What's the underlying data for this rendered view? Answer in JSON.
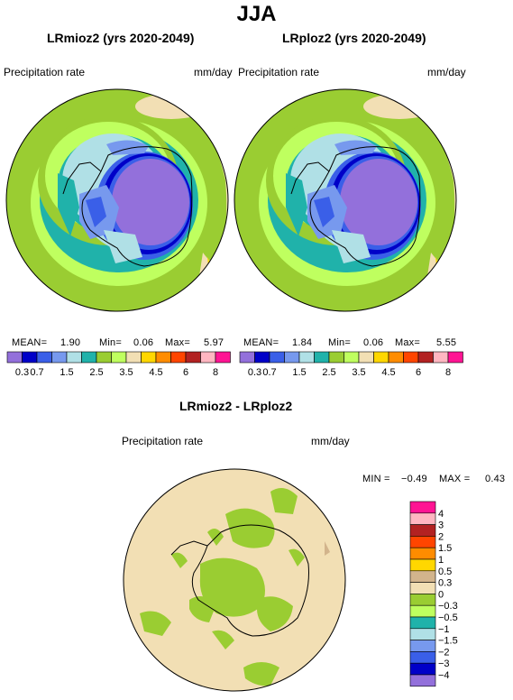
{
  "figure": {
    "title": "JJA"
  },
  "colors": {
    "scale_abs": [
      "#9370db",
      "#0000c8",
      "#3a5fe8",
      "#7799ee",
      "#b0e0e6",
      "#20b2aa",
      "#9acd32",
      "#bfff5f",
      "#f2dfb4",
      "#ffd700",
      "#ff8c00",
      "#ff4500",
      "#b22222",
      "#ffb6c1",
      "#ff1493"
    ],
    "scale_diff": [
      "#9370db",
      "#0000c8",
      "#3a5fe8",
      "#7799ee",
      "#b0e0e6",
      "#20b2aa",
      "#bfff5f",
      "#9acd32",
      "#f2dfb4",
      "#d2b48c",
      "#ffd700",
      "#ff8c00",
      "#ff4500",
      "#b22222",
      "#ffb6c1",
      "#ff1493"
    ]
  },
  "chart_data": [
    {
      "type": "heatmap",
      "title": "LRmioz2 (yrs 2020-2049)",
      "left_label": "Precipitation rate",
      "right_label": "mm/day",
      "stats": {
        "mean_label": "MEAN=",
        "mean": "1.90",
        "min_label": "Min=",
        "min": "0.06",
        "max_label": "Max=",
        "max": "5.97"
      },
      "levels": [
        "0.3",
        "0.7",
        "1",
        "1.5",
        "2",
        "2.5",
        "3",
        "3.5",
        "4",
        "4.5",
        "5",
        "6",
        "7",
        "8"
      ],
      "shown_tick_labels": [
        "0.3",
        "0.7",
        "1.5",
        "2.5",
        "3.5",
        "4.5",
        "6",
        "8"
      ]
    },
    {
      "type": "heatmap",
      "title": "LRploz2 (yrs 2020-2049)",
      "left_label": "Precipitation rate",
      "right_label": "mm/day",
      "stats": {
        "mean_label": "MEAN=",
        "mean": "1.84",
        "min_label": "Min=",
        "min": "0.06",
        "max_label": "Max=",
        "max": "5.55"
      },
      "levels": [
        "0.3",
        "0.7",
        "1",
        "1.5",
        "2",
        "2.5",
        "3",
        "3.5",
        "4",
        "4.5",
        "5",
        "6",
        "7",
        "8"
      ],
      "shown_tick_labels": [
        "0.3",
        "0.7",
        "1.5",
        "2.5",
        "3.5",
        "4.5",
        "6",
        "8"
      ]
    },
    {
      "type": "heatmap",
      "title": "LRmioz2 - LRploz2",
      "left_label": "Precipitation rate",
      "right_label": "mm/day",
      "stats": {
        "min_label": "MIN =",
        "min": "−0.49",
        "max_label": "MAX =",
        "max": "0.43"
      },
      "levels": [
        "4",
        "3",
        "2",
        "1.5",
        "1",
        "0.5",
        "0.3",
        "0",
        "−0.3",
        "−0.5",
        "−1",
        "−1.5",
        "−2",
        "−3",
        "−4"
      ]
    }
  ]
}
